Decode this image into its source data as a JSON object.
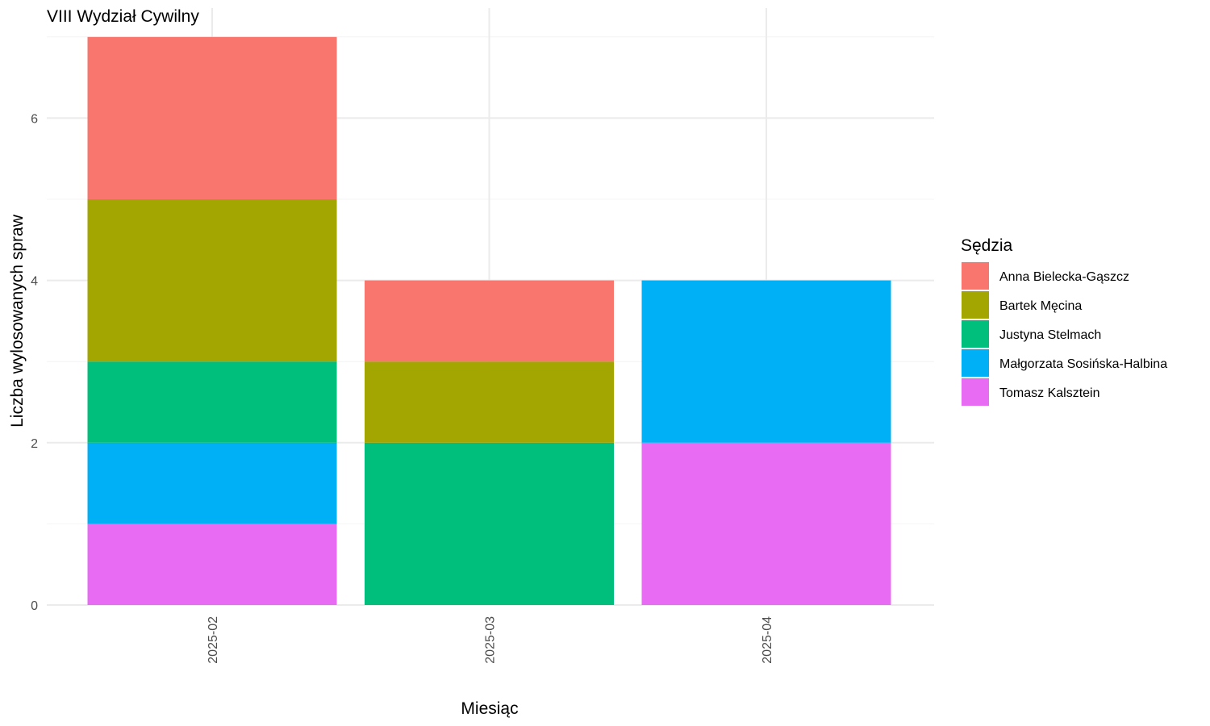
{
  "chart_data": {
    "type": "bar",
    "stacked": true,
    "title": "VIII Wydział Cywilny",
    "xlabel": "Miesiąc",
    "ylabel": "Liczba wylosowanych spraw",
    "categories": [
      "2025-02",
      "2025-03",
      "2025-04"
    ],
    "ylim": [
      0,
      7
    ],
    "yticks": [
      0,
      2,
      4,
      6
    ],
    "grid": true,
    "legend": {
      "title": "Sędzia",
      "placement": "right"
    },
    "series": [
      {
        "name": "Tomasz Kalsztein",
        "color": "#E76BF3",
        "values": [
          1,
          0,
          2
        ]
      },
      {
        "name": "Małgorzata Sosińska-Halbina",
        "color": "#00B0F6",
        "values": [
          1,
          0,
          2
        ]
      },
      {
        "name": "Justyna Stelmach",
        "color": "#00BF7D",
        "values": [
          1,
          2,
          0
        ]
      },
      {
        "name": "Bartek Męcina",
        "color": "#A3A500",
        "values": [
          2,
          1,
          0
        ]
      },
      {
        "name": "Anna Bielecka-Gąszcz",
        "color": "#F8766D",
        "values": [
          2,
          1,
          0
        ]
      }
    ],
    "legend_order": [
      "Anna Bielecka-Gąszcz",
      "Bartek Męcina",
      "Justyna Stelmach",
      "Małgorzata Sosińska-Halbina",
      "Tomasz Kalsztein"
    ]
  }
}
